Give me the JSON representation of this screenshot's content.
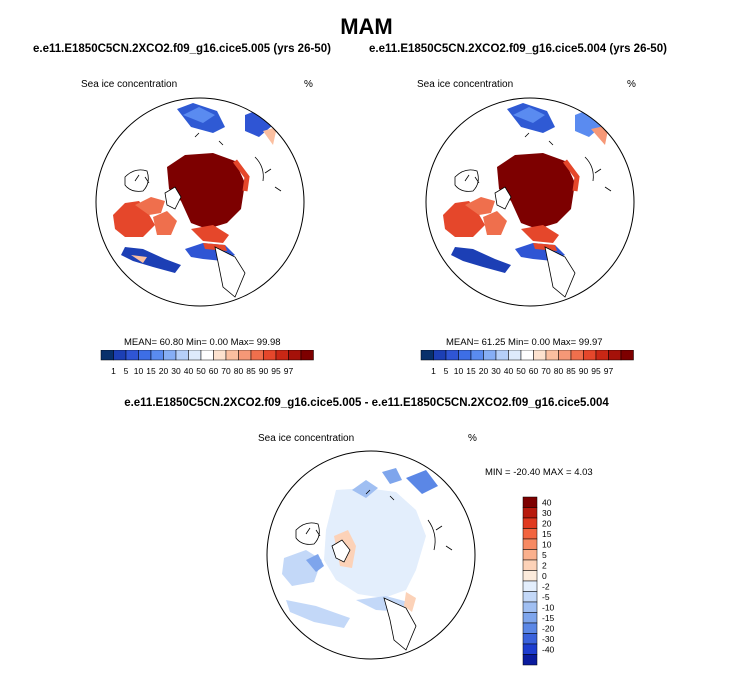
{
  "title": "MAM",
  "panels": [
    {
      "case_label": "e.e11.E1850C5CN.2XCO2.f09_g16.cice5.005 (yrs 26-50)",
      "variable": "Sea ice concentration",
      "units": "%",
      "stats": "MEAN=  60.80  Min=   0.00  Max=  99.98"
    },
    {
      "case_label": "e.e11.E1850C5CN.2XCO2.f09_g16.cice5.004 (yrs 26-50)",
      "variable": "Sea ice concentration",
      "units": "%",
      "stats": "MEAN=  61.25  Min=   0.00  Max=  99.97"
    }
  ],
  "diff_panel": {
    "title": "e.e11.E1850C5CN.2XCO2.f09_g16.cice5.005 - e.e11.E1850C5CN.2XCO2.f09_g16.cice5.004",
    "variable": "Sea ice concentration",
    "units": "%",
    "stats": "MIN = -20.40 MAX =   4.03"
  },
  "abs_colorbar": {
    "labels": [
      "1",
      "5",
      "10",
      "15",
      "20",
      "30",
      "40",
      "50",
      "60",
      "70",
      "80",
      "85",
      "90",
      "95",
      "97"
    ],
    "colors": [
      "#08306b",
      "#1c3fb5",
      "#2f55d4",
      "#3d6ee6",
      "#5a8bf0",
      "#86aef5",
      "#b5cff8",
      "#ddeafc",
      "#ffffff",
      "#fde2cf",
      "#fbbfa0",
      "#f69877",
      "#ef6f4d",
      "#e5472b",
      "#c92715",
      "#a51109",
      "#7d0000"
    ]
  },
  "diff_colorbar": {
    "labels": [
      "40",
      "30",
      "20",
      "15",
      "10",
      "5",
      "2",
      "0",
      "-2",
      "-5",
      "-10",
      "-15",
      "-20",
      "-30",
      "-40"
    ],
    "colors": [
      "#7d0000",
      "#b81a0d",
      "#e0391f",
      "#f2643f",
      "#f78a63",
      "#fab08d",
      "#fcd2b8",
      "#fcebdc",
      "#e3eefc",
      "#c3d8f8",
      "#a0bff2",
      "#7ea5ec",
      "#5b87e6",
      "#3a62dc",
      "#1d3dcf",
      "#0a1c9e"
    ]
  }
}
